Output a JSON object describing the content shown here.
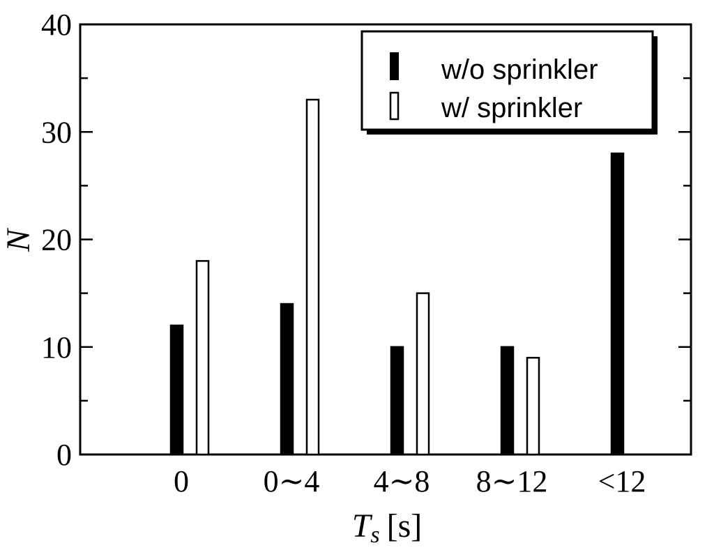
{
  "chart_data": {
    "type": "bar",
    "categories": [
      "0",
      "0∼4",
      "4∼8",
      "8∼12",
      "<12"
    ],
    "series": [
      {
        "name": "w/o sprinkler",
        "values": [
          12,
          14,
          10,
          10,
          28
        ],
        "fill": "#000000"
      },
      {
        "name": "w/ sprinkler",
        "values": [
          18,
          33,
          15,
          9,
          null
        ],
        "fill": "#ffffff"
      }
    ],
    "xlabel": {
      "main": "T",
      "sub": "s",
      "unit": "[s]"
    },
    "ylabel": "N",
    "ylim": [
      0,
      40
    ],
    "yticks": [
      "0",
      "10",
      "20",
      "30",
      "40"
    ],
    "legend_position": "top-right",
    "grid": false
  }
}
